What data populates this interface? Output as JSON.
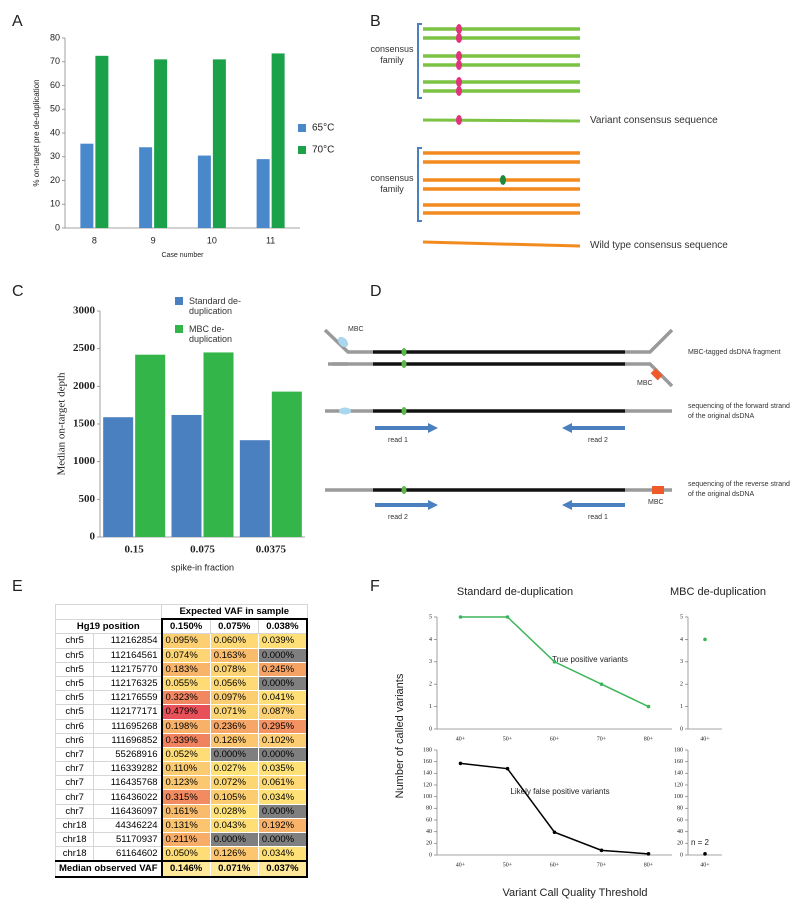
{
  "panels": [
    "A",
    "B",
    "C",
    "D",
    "E",
    "F"
  ],
  "chart_data": [
    {
      "type": "bar",
      "categories": [
        "8",
        "9",
        "10",
        "11"
      ],
      "series": [
        {
          "name": "65°C",
          "color": "#4a88cc",
          "values": [
            35.5,
            34,
            30.5,
            29
          ]
        },
        {
          "name": "70°C",
          "color": "#1aa14a",
          "values": [
            72.5,
            71,
            71,
            73.5
          ]
        }
      ],
      "ylim": [
        0,
        80
      ],
      "yticks": [
        0,
        10,
        20,
        30,
        40,
        50,
        60,
        70,
        80
      ],
      "ylabel": "% on-target pre de-duplication",
      "xlabel": "Case number"
    },
    {
      "type": "bar",
      "categories": [
        "0.15",
        "0.075",
        "0.0375"
      ],
      "series": [
        {
          "name": "Standard de-duplication",
          "color": "#4a7fc0",
          "values": [
            1590,
            1620,
            1285
          ]
        },
        {
          "name": "MBC de-duplication",
          "color": "#33b54a",
          "values": [
            2420,
            2450,
            1930
          ]
        }
      ],
      "ylim": [
        0,
        3000
      ],
      "yticks": [
        0,
        500,
        1000,
        1500,
        2000,
        2500,
        3000
      ],
      "ylabel": "Median on-target depth",
      "xlabel": "spike-in fraction"
    },
    {
      "type": "line",
      "title": "Standard de-duplication",
      "categories": [
        "40+",
        "50+",
        "60+",
        "70+",
        "80+"
      ],
      "values": [
        5,
        5,
        3,
        2,
        1
      ],
      "color": "#3cb55a",
      "ylim": [
        0,
        5
      ],
      "yticks": [
        0,
        1,
        2,
        3,
        4,
        5
      ],
      "annotation": "True positive variants"
    },
    {
      "type": "line",
      "categories": [
        "40+",
        "50+",
        "60+",
        "70+",
        "80+"
      ],
      "values": [
        157,
        148,
        39,
        8,
        2
      ],
      "color": "#000000",
      "ylim": [
        0,
        180
      ],
      "yticks": [
        0,
        20,
        40,
        60,
        80,
        100,
        120,
        140,
        160,
        180
      ],
      "annotation": "Likely false positive variants"
    },
    {
      "type": "line",
      "title": "MBC de-duplication",
      "categories": [
        "40+"
      ],
      "values": [
        4
      ],
      "color": "#3cb55a",
      "ylim": [
        0,
        5
      ],
      "yticks": [
        0,
        1,
        2,
        3,
        4,
        5
      ]
    },
    {
      "type": "line",
      "categories": [
        "40+"
      ],
      "values": [
        2
      ],
      "color": "#000000",
      "ylim": [
        0,
        180
      ],
      "yticks": [
        0,
        20,
        40,
        60,
        80,
        100,
        120,
        140,
        160,
        180
      ],
      "annotation": "n = 2"
    }
  ],
  "panel_f": {
    "ylabel": "Number of called variants",
    "xlabel": "Variant Call Quality Threshold"
  },
  "diagram_b": {
    "family_1": "consensus family",
    "variant": "Variant consensus sequence",
    "family_2": "consensus family",
    "wild_type": "Wild type consensus sequence"
  },
  "diagram_d": {
    "mbc_1": "MBC",
    "mbc_2": "MBC",
    "fragment": "MBC-tagged dsDNA fragment",
    "forward": "sequencing of the forward strand of the original dsDNA",
    "forward_read_1": "read 1",
    "forward_read_2": "read 2",
    "reverse": "sequencing of the reverse strand of the original dsDNA",
    "reverse_read_2": "read 2",
    "reverse_read_1": "read 1",
    "mbc_3": "MBC"
  },
  "table": {
    "header": "Expected VAF in sample",
    "columns": [
      "Hg19 position",
      "0.150%",
      "0.075%",
      "0.038%"
    ],
    "rows": [
      [
        "chr5",
        "112162854",
        "0.095%",
        "0.060%",
        "0.039%"
      ],
      [
        "chr5",
        "112164561",
        "0.074%",
        "0.163%",
        "0.000%"
      ],
      [
        "chr5",
        "112175770",
        "0.183%",
        "0.078%",
        "0.245%"
      ],
      [
        "chr5",
        "112176325",
        "0.055%",
        "0.056%",
        "0.000%"
      ],
      [
        "chr5",
        "112176559",
        "0.323%",
        "0.097%",
        "0.041%"
      ],
      [
        "chr5",
        "112177171",
        "0.479%",
        "0.071%",
        "0.087%"
      ],
      [
        "chr6",
        "111695268",
        "0.198%",
        "0.236%",
        "0.295%"
      ],
      [
        "chr6",
        "111696852",
        "0.339%",
        "0.126%",
        "0.102%"
      ],
      [
        "chr7",
        "55268916",
        "0.052%",
        "0.000%",
        "0.000%"
      ],
      [
        "chr7",
        "116339282",
        "0.110%",
        "0.027%",
        "0.035%"
      ],
      [
        "chr7",
        "116435768",
        "0.123%",
        "0.072%",
        "0.061%"
      ],
      [
        "chr7",
        "116436022",
        "0.315%",
        "0.105%",
        "0.034%"
      ],
      [
        "chr7",
        "116436097",
        "0.161%",
        "0.028%",
        "0.000%"
      ],
      [
        "chr18",
        "44346224",
        "0.131%",
        "0.043%",
        "0.192%"
      ],
      [
        "chr18",
        "51170937",
        "0.211%",
        "0.000%",
        "0.000%"
      ],
      [
        "chr18",
        "61164602",
        "0.050%",
        "0.126%",
        "0.034%"
      ]
    ],
    "footer": {
      "label": "Median observed VAF",
      "values": [
        "0.146%",
        "0.071%",
        "0.037%"
      ]
    }
  }
}
